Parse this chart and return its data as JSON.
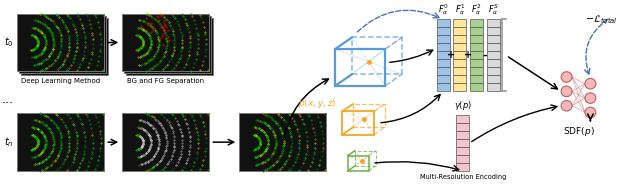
{
  "bg_color": "#ffffff",
  "left_panel": {
    "t0_label": "$t_0$",
    "tn_label": "$t_n$",
    "dots_label": "...",
    "label1": "Deep Learning Method",
    "label2": "BG and FG Separation"
  },
  "right_panel": {
    "point_label": "$p(x, y, z)$",
    "feature_labels": [
      "$F_{\\alpha}^{0}$",
      "$F_{\\alpha}^{1}$",
      "$F_{\\alpha}^{2}$",
      "$F_{\\alpha}^{S}$"
    ],
    "loss_label": "$-\\mathcal{L}_{tqtal}$",
    "gamma_label": "$\\gamma(p)$",
    "encoding_label": "Multi-Resolution Encoding",
    "sdf_label": "$\\mathrm{SDF}(p)$"
  },
  "cube_colors": [
    "#5b9bd5",
    "#f5a623",
    "#70ad47"
  ],
  "feature_colors": [
    "#9dc3e6",
    "#ffe699",
    "#a9d18e",
    "#d9d9d9"
  ],
  "neural_color": "#f4b8b8",
  "arrow_color": "#000000",
  "dashed_arrow_color": "#4472c4",
  "lidar_bg": "#111111",
  "lidar_green": "#00cc00",
  "lidar_yellow": "#cccc00",
  "lidar_red": "#dd2222"
}
